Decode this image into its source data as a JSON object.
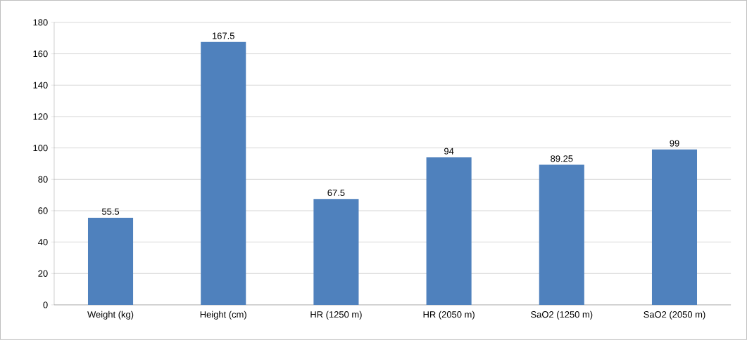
{
  "chart_data": {
    "type": "bar",
    "categories": [
      "Weight (kg)",
      "Height (cm)",
      "HR (1250 m)",
      "HR (2050 m)",
      "SaO2 (1250 m)",
      "SaO2 (2050 m)"
    ],
    "values": [
      55.5,
      167.5,
      67.5,
      94,
      89.25,
      99
    ],
    "color": "#4f81bd",
    "ylim": [
      0,
      180
    ],
    "yticks": [
      0,
      20,
      40,
      60,
      80,
      100,
      120,
      140,
      160,
      180
    ],
    "grid": "y",
    "data_labels": true
  }
}
